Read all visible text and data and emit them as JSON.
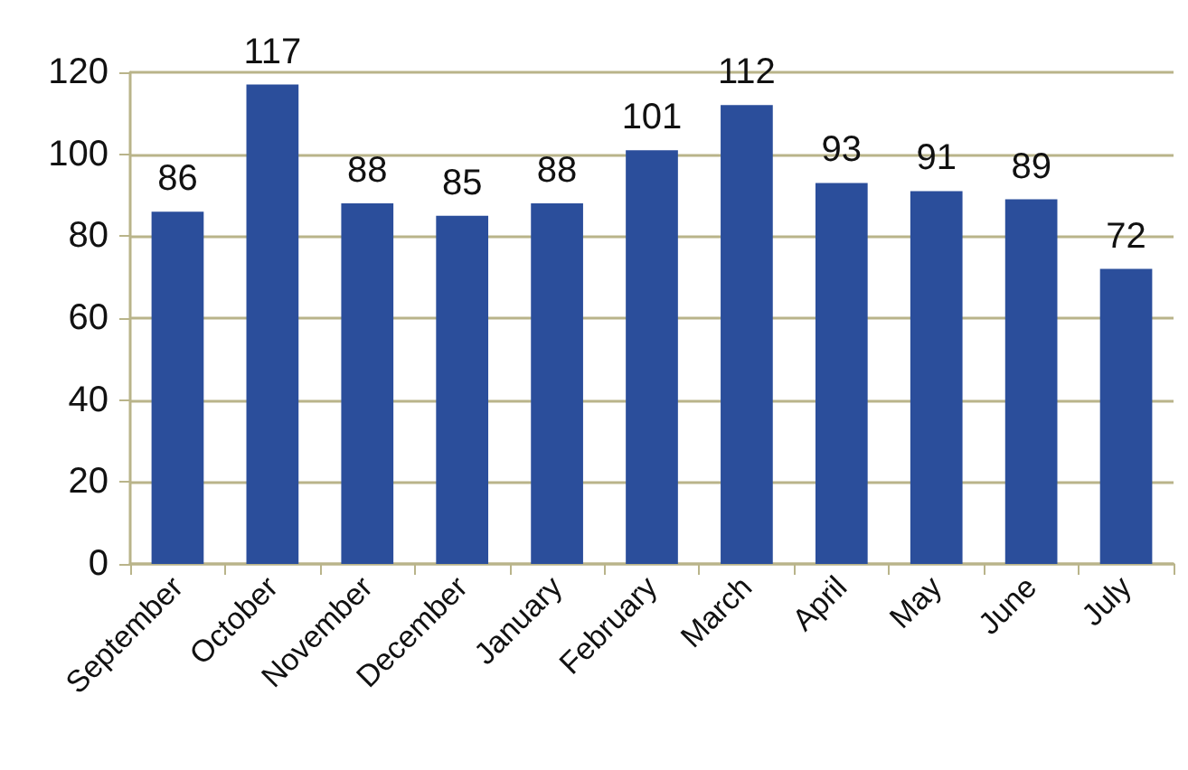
{
  "chart_data": {
    "type": "bar",
    "categories": [
      "September",
      "October",
      "November",
      "December",
      "January",
      "February",
      "March",
      "April",
      "May",
      "June",
      "July"
    ],
    "values": [
      86,
      117,
      88,
      85,
      88,
      101,
      112,
      93,
      91,
      89,
      72
    ],
    "color": "#2b4e9b",
    "ylim": [
      0,
      120
    ],
    "yticks": [
      0,
      20,
      40,
      60,
      80,
      100,
      120
    ],
    "grid": "y",
    "data_labels": true
  }
}
